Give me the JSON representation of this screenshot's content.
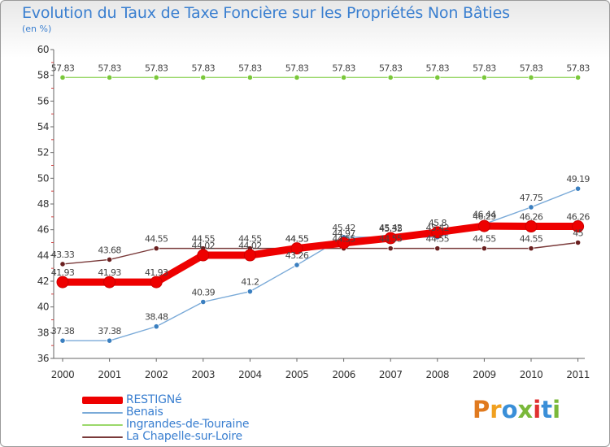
{
  "title": "Evolution du Taux de Taxe Foncière sur les Propriétés Non Bâties",
  "unit": "(en %)",
  "logo_text": "Proxiti",
  "logo_colors": [
    "#e07a1f",
    "#f0a020",
    "#3a8fd8",
    "#7ab83a",
    "#e03030",
    "#3a8fd8",
    "#7ab83a"
  ],
  "chart_data": {
    "type": "line",
    "title": "Evolution du Taux de Taxe Foncière sur les Propriétés Non Bâties",
    "ylabel": "(en %)",
    "xlabel": "",
    "x": [
      "2000",
      "2001",
      "2002",
      "2003",
      "2004",
      "2005",
      "2006",
      "2007",
      "2008",
      "2009",
      "2010",
      "2011"
    ],
    "ylim": [
      36,
      60
    ],
    "yticks": [
      36,
      38,
      40,
      42,
      44,
      46,
      48,
      50,
      52,
      54,
      56,
      58,
      60
    ],
    "grid": false,
    "legend_position": "bottom-left",
    "series": [
      {
        "name": "RESTIGNé",
        "color": "#ee0000",
        "style": "thick",
        "values": [
          41.93,
          41.93,
          41.93,
          44.02,
          44.02,
          44.55,
          44.97,
          45.35,
          45.8,
          46.29,
          46.26,
          46.26
        ],
        "labels": [
          "41.93",
          "41.93",
          "41.93",
          "44.02",
          "44.02",
          "44.55",
          "44.97",
          "45.35",
          "45.8",
          "46.29",
          "46.26",
          "46.26"
        ]
      },
      {
        "name": "Benais",
        "color": "#7aaad8",
        "style": "thin",
        "values": [
          37.38,
          37.38,
          38.48,
          40.39,
          41.2,
          43.26,
          45.42,
          45.42,
          45.42,
          46.44,
          47.75,
          49.19
        ],
        "labels": [
          "37.38",
          "37.38",
          "38.48",
          "40.39",
          "41.2",
          "43.26",
          "45.42",
          "45.42",
          "45.42",
          "46.44",
          "47.75",
          "49.19"
        ]
      },
      {
        "name": "Ingrandes-de-Touraine",
        "color": "#9ad86a",
        "style": "thin",
        "values": [
          57.83,
          57.83,
          57.83,
          57.83,
          57.83,
          57.83,
          57.83,
          57.83,
          57.83,
          57.83,
          57.83,
          57.83
        ],
        "labels": [
          "57.83",
          "57.83",
          "57.83",
          "57.83",
          "57.83",
          "57.83",
          "57.83",
          "57.83",
          "57.83",
          "57.83",
          "57.83",
          "57.83"
        ]
      },
      {
        "name": "La Chapelle-sur-Loire",
        "color": "#7a3a3a",
        "style": "thin",
        "values": [
          43.33,
          43.68,
          44.55,
          44.55,
          44.55,
          44.55,
          44.55,
          44.55,
          44.55,
          44.55,
          44.55,
          45
        ],
        "labels": [
          "43.33",
          "43.68",
          "44.55",
          "44.55",
          "44.55",
          "44.55",
          "44.55",
          "44.55",
          "44.55",
          "44.55",
          "44.55",
          "45"
        ]
      }
    ]
  }
}
